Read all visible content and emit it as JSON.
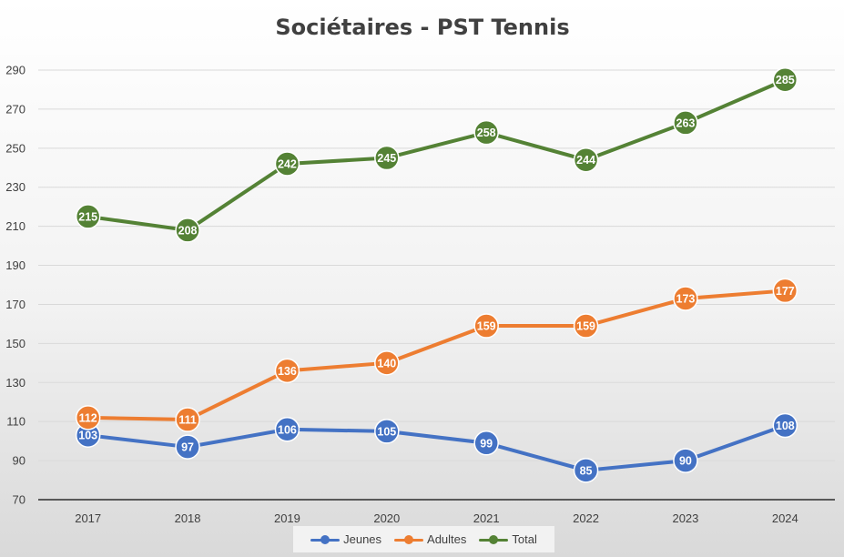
{
  "chart_data": {
    "type": "line",
    "title": "Sociétaires - PST Tennis",
    "xlabel": "",
    "ylabel": "",
    "categories": [
      "2017",
      "2018",
      "2019",
      "2020",
      "2021",
      "2022",
      "2023",
      "2024"
    ],
    "ylim": [
      70,
      290
    ],
    "yticks": [
      70,
      90,
      110,
      130,
      150,
      170,
      190,
      210,
      230,
      250,
      270,
      290
    ],
    "grid": true,
    "legend_position": "bottom",
    "series": [
      {
        "name": "Jeunes",
        "color": "#4472c4",
        "values": [
          103,
          97,
          106,
          105,
          99,
          85,
          90,
          108
        ]
      },
      {
        "name": "Adultes",
        "color": "#ed7d31",
        "values": [
          112,
          111,
          136,
          140,
          159,
          159,
          173,
          177
        ]
      },
      {
        "name": "Total",
        "color": "#548235",
        "values": [
          215,
          208,
          242,
          245,
          258,
          244,
          263,
          285
        ]
      }
    ]
  }
}
